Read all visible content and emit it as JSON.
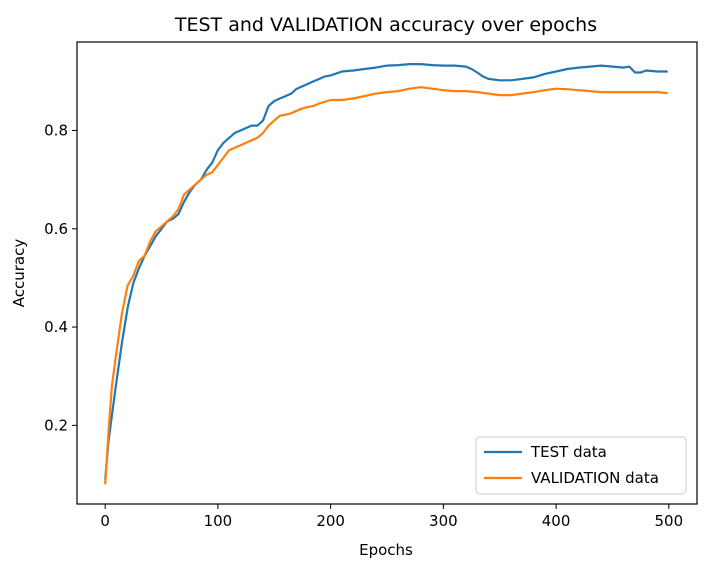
{
  "chart_data": {
    "type": "line",
    "title": "TEST and VALIDATION accuracy over epochs",
    "xlabel": "Epochs",
    "ylabel": "Accuracy",
    "xlim": [
      -25,
      525
    ],
    "ylim": [
      0.04,
      0.98
    ],
    "xticks": [
      0,
      100,
      200,
      300,
      400,
      500
    ],
    "yticks": [
      0.2,
      0.4,
      0.6,
      0.8
    ],
    "grid": false,
    "legend_position": "lower-right",
    "series": [
      {
        "name": "TEST data",
        "color": "#1f77b4",
        "points": [
          [
            0,
            0.09
          ],
          [
            3,
            0.17
          ],
          [
            6,
            0.22
          ],
          [
            10,
            0.29
          ],
          [
            15,
            0.37
          ],
          [
            20,
            0.44
          ],
          [
            25,
            0.49
          ],
          [
            30,
            0.52
          ],
          [
            35,
            0.545
          ],
          [
            40,
            0.565
          ],
          [
            45,
            0.585
          ],
          [
            50,
            0.6
          ],
          [
            55,
            0.615
          ],
          [
            60,
            0.62
          ],
          [
            65,
            0.63
          ],
          [
            70,
            0.655
          ],
          [
            75,
            0.675
          ],
          [
            80,
            0.69
          ],
          [
            85,
            0.7
          ],
          [
            90,
            0.72
          ],
          [
            95,
            0.735
          ],
          [
            100,
            0.76
          ],
          [
            105,
            0.775
          ],
          [
            110,
            0.785
          ],
          [
            115,
            0.795
          ],
          [
            120,
            0.8
          ],
          [
            125,
            0.805
          ],
          [
            130,
            0.81
          ],
          [
            135,
            0.81
          ],
          [
            140,
            0.82
          ],
          [
            145,
            0.85
          ],
          [
            150,
            0.86
          ],
          [
            155,
            0.865
          ],
          [
            160,
            0.87
          ],
          [
            165,
            0.875
          ],
          [
            170,
            0.885
          ],
          [
            175,
            0.89
          ],
          [
            180,
            0.895
          ],
          [
            185,
            0.9
          ],
          [
            190,
            0.905
          ],
          [
            195,
            0.91
          ],
          [
            200,
            0.912
          ],
          [
            210,
            0.92
          ],
          [
            220,
            0.922
          ],
          [
            230,
            0.925
          ],
          [
            240,
            0.928
          ],
          [
            250,
            0.932
          ],
          [
            260,
            0.933
          ],
          [
            270,
            0.935
          ],
          [
            280,
            0.935
          ],
          [
            290,
            0.933
          ],
          [
            300,
            0.932
          ],
          [
            310,
            0.932
          ],
          [
            320,
            0.93
          ],
          [
            325,
            0.925
          ],
          [
            330,
            0.918
          ],
          [
            335,
            0.91
          ],
          [
            340,
            0.905
          ],
          [
            350,
            0.902
          ],
          [
            360,
            0.902
          ],
          [
            370,
            0.905
          ],
          [
            380,
            0.908
          ],
          [
            390,
            0.915
          ],
          [
            400,
            0.92
          ],
          [
            410,
            0.925
          ],
          [
            420,
            0.928
          ],
          [
            430,
            0.93
          ],
          [
            440,
            0.932
          ],
          [
            450,
            0.93
          ],
          [
            460,
            0.928
          ],
          [
            465,
            0.93
          ],
          [
            470,
            0.918
          ],
          [
            475,
            0.918
          ],
          [
            480,
            0.922
          ],
          [
            490,
            0.92
          ],
          [
            499,
            0.92
          ]
        ]
      },
      {
        "name": "VALIDATION data",
        "color": "#ff7f0e",
        "points": [
          [
            0,
            0.08
          ],
          [
            3,
            0.19
          ],
          [
            6,
            0.28
          ],
          [
            10,
            0.35
          ],
          [
            15,
            0.43
          ],
          [
            20,
            0.485
          ],
          [
            25,
            0.505
          ],
          [
            30,
            0.535
          ],
          [
            35,
            0.545
          ],
          [
            40,
            0.575
          ],
          [
            45,
            0.595
          ],
          [
            50,
            0.605
          ],
          [
            55,
            0.615
          ],
          [
            60,
            0.625
          ],
          [
            65,
            0.64
          ],
          [
            70,
            0.67
          ],
          [
            75,
            0.68
          ],
          [
            80,
            0.69
          ],
          [
            85,
            0.7
          ],
          [
            90,
            0.71
          ],
          [
            95,
            0.715
          ],
          [
            100,
            0.73
          ],
          [
            105,
            0.745
          ],
          [
            110,
            0.76
          ],
          [
            115,
            0.765
          ],
          [
            120,
            0.77
          ],
          [
            125,
            0.775
          ],
          [
            130,
            0.78
          ],
          [
            135,
            0.785
          ],
          [
            140,
            0.795
          ],
          [
            145,
            0.81
          ],
          [
            150,
            0.82
          ],
          [
            155,
            0.83
          ],
          [
            160,
            0.832
          ],
          [
            165,
            0.835
          ],
          [
            170,
            0.84
          ],
          [
            175,
            0.845
          ],
          [
            180,
            0.848
          ],
          [
            185,
            0.85
          ],
          [
            190,
            0.855
          ],
          [
            200,
            0.862
          ],
          [
            210,
            0.862
          ],
          [
            220,
            0.865
          ],
          [
            230,
            0.87
          ],
          [
            240,
            0.875
          ],
          [
            250,
            0.878
          ],
          [
            260,
            0.88
          ],
          [
            270,
            0.885
          ],
          [
            280,
            0.888
          ],
          [
            290,
            0.885
          ],
          [
            300,
            0.882
          ],
          [
            310,
            0.88
          ],
          [
            320,
            0.88
          ],
          [
            330,
            0.878
          ],
          [
            340,
            0.875
          ],
          [
            350,
            0.872
          ],
          [
            360,
            0.872
          ],
          [
            370,
            0.875
          ],
          [
            380,
            0.878
          ],
          [
            390,
            0.882
          ],
          [
            400,
            0.885
          ],
          [
            410,
            0.884
          ],
          [
            420,
            0.882
          ],
          [
            430,
            0.88
          ],
          [
            440,
            0.878
          ],
          [
            450,
            0.878
          ],
          [
            460,
            0.878
          ],
          [
            470,
            0.878
          ],
          [
            480,
            0.878
          ],
          [
            490,
            0.878
          ],
          [
            499,
            0.876
          ]
        ]
      }
    ]
  }
}
